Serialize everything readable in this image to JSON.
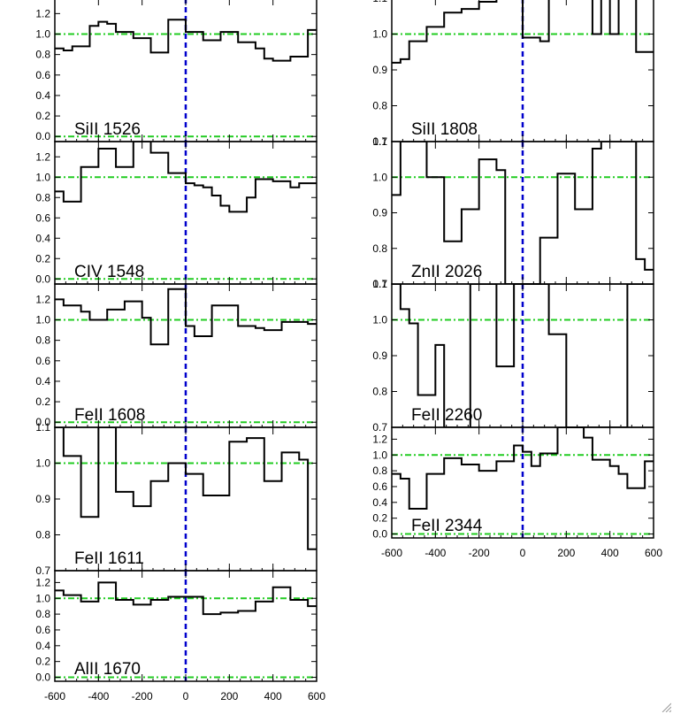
{
  "colors": {
    "spectrum": "#000000",
    "continuum": "#22cc22",
    "zero_velocity": "#0000cc",
    "background": "#ffffff"
  },
  "resize_grip_icon": "resize-grip-icon",
  "chart_data": [
    {
      "type": "line",
      "title": "",
      "xlabel": "",
      "ylabel": "",
      "xlim": [
        -600,
        600
      ],
      "ylim": [
        -0.05,
        1.35
      ],
      "yticks": [
        "0.0",
        "0.2",
        "0.4",
        "0.6",
        "0.8",
        "1.0",
        "1.2"
      ],
      "xticks": [],
      "annotation": "SiII 1526",
      "reference_lines": {
        "continuum": [
          0.0,
          1.0
        ],
        "velocity": 0
      },
      "series": [
        {
          "step_x": [
            -600,
            -560,
            -520,
            -480,
            -440,
            -400,
            -360,
            -320,
            -280,
            -240,
            -200,
            -160,
            -120,
            -80,
            -40,
            0,
            40,
            80,
            120,
            160,
            200,
            240,
            280,
            320,
            360,
            400,
            440,
            480,
            520,
            560,
            600
          ],
          "values": [
            0.86,
            0.84,
            0.88,
            0.88,
            1.08,
            1.12,
            1.1,
            1.02,
            1.02,
            0.96,
            0.96,
            0.82,
            0.82,
            1.14,
            1.14,
            1.02,
            1.02,
            0.94,
            0.94,
            1.02,
            1.02,
            0.92,
            0.92,
            0.86,
            0.76,
            0.74,
            0.74,
            0.78,
            0.78,
            1.04
          ]
        }
      ]
    },
    {
      "type": "line",
      "title": "",
      "xlabel": "",
      "ylabel": "",
      "xlim": [
        -600,
        600
      ],
      "ylim": [
        -0.05,
        1.35
      ],
      "yticks": [
        "0.0",
        "0.2",
        "0.4",
        "0.6",
        "0.8",
        "1.0",
        "1.2"
      ],
      "xticks": [],
      "annotation": "CIV 1548",
      "reference_lines": {
        "continuum": [
          0.0,
          1.0
        ],
        "velocity": 0
      },
      "series": [
        {
          "step_x": [
            -600,
            -560,
            -520,
            -480,
            -440,
            -400,
            -360,
            -320,
            -280,
            -240,
            -200,
            -160,
            -120,
            -80,
            -40,
            0,
            40,
            80,
            120,
            160,
            200,
            240,
            280,
            320,
            360,
            400,
            440,
            480,
            520,
            560,
            600
          ],
          "values": [
            0.86,
            0.76,
            0.76,
            1.1,
            1.1,
            1.28,
            1.28,
            1.1,
            1.1,
            1.36,
            1.36,
            1.24,
            1.24,
            1.04,
            1.04,
            0.94,
            0.92,
            0.9,
            0.82,
            0.72,
            0.66,
            0.66,
            0.8,
            0.98,
            0.98,
            0.96,
            0.96,
            0.9,
            0.94,
            0.94
          ]
        }
      ]
    },
    {
      "type": "line",
      "title": "",
      "xlabel": "",
      "ylabel": "",
      "xlim": [
        -600,
        600
      ],
      "ylim": [
        -0.05,
        1.35
      ],
      "yticks": [
        "0.0",
        "0.2",
        "0.4",
        "0.6",
        "0.8",
        "1.0",
        "1.2"
      ],
      "xticks": [],
      "annotation": "FeII 1608",
      "reference_lines": {
        "continuum": [
          0.0,
          1.0
        ],
        "velocity": 0
      },
      "series": [
        {
          "step_x": [
            -600,
            -560,
            -520,
            -480,
            -440,
            -400,
            -360,
            -320,
            -280,
            -240,
            -200,
            -160,
            -120,
            -80,
            -40,
            0,
            40,
            80,
            120,
            160,
            200,
            240,
            280,
            320,
            360,
            400,
            440,
            480,
            520,
            560,
            600
          ],
          "values": [
            1.2,
            1.14,
            1.14,
            1.08,
            1.0,
            1.0,
            1.1,
            1.1,
            1.18,
            1.18,
            1.02,
            0.76,
            0.76,
            1.3,
            1.3,
            0.94,
            0.84,
            0.84,
            1.14,
            1.14,
            1.14,
            0.94,
            0.94,
            0.92,
            0.9,
            0.9,
            0.98,
            0.98,
            0.98,
            0.96
          ]
        }
      ]
    },
    {
      "type": "line",
      "title": "",
      "xlabel": "",
      "ylabel": "",
      "xlim": [
        -600,
        600
      ],
      "ylim": [
        0.7,
        1.1
      ],
      "yticks": [
        "0.7",
        "0.8",
        "0.9",
        "1.0",
        "1.1"
      ],
      "xticks": [],
      "annotation": "FeII 1611",
      "reference_lines": {
        "continuum": [
          1.0
        ],
        "velocity": 0
      },
      "series": [
        {
          "step_x": [
            -600,
            -560,
            -520,
            -480,
            -440,
            -400,
            -360,
            -320,
            -280,
            -240,
            -200,
            -160,
            -120,
            -80,
            -40,
            0,
            40,
            80,
            120,
            160,
            200,
            240,
            280,
            320,
            360,
            400,
            440,
            480,
            520,
            560,
            600
          ],
          "values": [
            1.1,
            1.02,
            1.02,
            0.85,
            0.85,
            1.1,
            1.1,
            0.92,
            0.92,
            0.88,
            0.88,
            0.95,
            0.95,
            1.0,
            1.0,
            0.97,
            0.97,
            0.91,
            0.91,
            0.91,
            1.06,
            1.06,
            1.07,
            1.07,
            0.95,
            0.95,
            1.03,
            1.03,
            1.01,
            0.76
          ]
        }
      ]
    },
    {
      "type": "line",
      "title": "",
      "xlabel": "",
      "ylabel": "",
      "xlim": [
        -600,
        600
      ],
      "ylim": [
        -0.05,
        1.35
      ],
      "yticks": [
        "0.0",
        "0.2",
        "0.4",
        "0.6",
        "0.8",
        "1.0",
        "1.2"
      ],
      "xticks": [
        "-600",
        "-400",
        "-200",
        "0",
        "200",
        "400",
        "600"
      ],
      "annotation": "AlII 1670",
      "reference_lines": {
        "continuum": [
          0.0,
          1.0
        ],
        "velocity": 0
      },
      "series": [
        {
          "step_x": [
            -600,
            -560,
            -520,
            -480,
            -440,
            -400,
            -360,
            -320,
            -280,
            -240,
            -200,
            -160,
            -120,
            -80,
            -40,
            0,
            40,
            80,
            120,
            160,
            200,
            240,
            280,
            320,
            360,
            400,
            440,
            480,
            520,
            560,
            600
          ],
          "values": [
            1.1,
            1.04,
            1.04,
            0.96,
            0.96,
            1.2,
            1.2,
            0.98,
            0.98,
            0.92,
            0.92,
            0.98,
            0.98,
            1.02,
            1.02,
            1.02,
            1.02,
            0.8,
            0.8,
            0.82,
            0.82,
            0.84,
            0.84,
            0.96,
            0.96,
            1.14,
            1.14,
            0.98,
            0.98,
            0.9
          ]
        }
      ]
    },
    {
      "type": "line",
      "title": "",
      "xlabel": "",
      "ylabel": "",
      "xlim": [
        -600,
        600
      ],
      "ylim": [
        0.7,
        1.1
      ],
      "yticks": [
        "0.7",
        "0.8",
        "0.9",
        "1.0",
        "1.1"
      ],
      "xticks": [],
      "annotation": "SiII 1808",
      "reference_lines": {
        "continuum": [
          1.0
        ],
        "velocity": 0
      },
      "series": [
        {
          "step_x": [
            -600,
            -560,
            -520,
            -480,
            -440,
            -400,
            -360,
            -320,
            -280,
            -240,
            -200,
            -160,
            -120,
            -80,
            -40,
            0,
            40,
            80,
            120,
            160,
            200,
            240,
            280,
            320,
            360,
            400,
            440,
            480,
            520,
            560,
            600
          ],
          "values": [
            0.92,
            0.93,
            0.98,
            0.98,
            1.02,
            1.02,
            1.06,
            1.06,
            1.07,
            1.07,
            1.09,
            1.09,
            1.1,
            1.12,
            1.12,
            0.99,
            0.99,
            0.98,
            1.12,
            1.12,
            1.12,
            1.12,
            1.12,
            1.0,
            1.12,
            1.0,
            1.12,
            1.12,
            0.95,
            0.95
          ]
        }
      ]
    },
    {
      "type": "line",
      "title": "",
      "xlabel": "",
      "ylabel": "",
      "xlim": [
        -600,
        600
      ],
      "ylim": [
        0.7,
        1.1
      ],
      "yticks": [
        "0.7",
        "0.8",
        "0.9",
        "1.0",
        "1.1"
      ],
      "xticks": [],
      "annotation": "ZnII 2026",
      "reference_lines": {
        "continuum": [
          1.0
        ],
        "velocity": 0
      },
      "series": [
        {
          "step_x": [
            -600,
            -560,
            -520,
            -480,
            -440,
            -400,
            -360,
            -320,
            -280,
            -240,
            -200,
            -160,
            -120,
            -80,
            -40,
            0,
            40,
            80,
            120,
            160,
            200,
            240,
            280,
            320,
            360,
            400,
            440,
            480,
            520,
            560,
            600
          ],
          "values": [
            0.95,
            1.12,
            1.12,
            1.12,
            1.0,
            1.0,
            0.82,
            0.82,
            0.91,
            0.91,
            1.05,
            1.05,
            1.02,
            0.67,
            0.67,
            0.67,
            0.67,
            0.83,
            0.83,
            1.01,
            1.01,
            0.91,
            0.91,
            1.08,
            1.12,
            1.12,
            1.12,
            1.12,
            0.77,
            0.74
          ]
        }
      ]
    },
    {
      "type": "line",
      "title": "",
      "xlabel": "",
      "ylabel": "",
      "xlim": [
        -600,
        600
      ],
      "ylim": [
        0.7,
        1.1
      ],
      "yticks": [
        "0.7",
        "0.8",
        "0.9",
        "1.0",
        "1.1"
      ],
      "xticks": [],
      "annotation": "FeII 2260",
      "reference_lines": {
        "continuum": [
          1.0
        ],
        "velocity": 0
      },
      "series": [
        {
          "step_x": [
            -600,
            -560,
            -520,
            -480,
            -440,
            -400,
            -360,
            -320,
            -280,
            -240,
            -200,
            -160,
            -120,
            -80,
            -40,
            0,
            40,
            80,
            120,
            160,
            200,
            240,
            280,
            320,
            360,
            400,
            440,
            480,
            520,
            560,
            600
          ],
          "values": [
            1.12,
            1.03,
            0.99,
            0.79,
            0.79,
            0.93,
            0.68,
            0.68,
            0.68,
            1.12,
            1.12,
            1.12,
            0.87,
            0.87,
            1.12,
            1.12,
            1.12,
            1.12,
            0.96,
            0.96,
            0.68,
            0.68,
            0.68,
            0.68,
            0.68,
            0.68,
            0.68,
            1.12,
            1.12,
            1.12
          ]
        }
      ]
    },
    {
      "type": "line",
      "title": "",
      "xlabel": "",
      "ylabel": "",
      "xlim": [
        -600,
        600
      ],
      "ylim": [
        -0.05,
        1.35
      ],
      "yticks": [
        "0.0",
        "0.2",
        "0.4",
        "0.6",
        "0.8",
        "1.0",
        "1.2"
      ],
      "xticks": [
        "-600",
        "-400",
        "-200",
        "0",
        "200",
        "400",
        "600"
      ],
      "annotation": "FeII 2344",
      "reference_lines": {
        "continuum": [
          0.0,
          1.0
        ],
        "velocity": 0
      },
      "series": [
        {
          "step_x": [
            -600,
            -560,
            -520,
            -480,
            -440,
            -400,
            -360,
            -320,
            -280,
            -240,
            -200,
            -160,
            -120,
            -80,
            -40,
            0,
            40,
            80,
            120,
            160,
            200,
            240,
            280,
            320,
            360,
            400,
            440,
            480,
            520,
            560,
            600
          ],
          "values": [
            0.76,
            0.7,
            0.32,
            0.32,
            0.76,
            0.76,
            0.96,
            0.96,
            0.88,
            0.88,
            0.8,
            0.8,
            0.92,
            0.92,
            1.12,
            1.04,
            0.86,
            1.02,
            1.02,
            1.36,
            1.36,
            1.36,
            1.22,
            0.94,
            0.94,
            0.86,
            0.76,
            0.58,
            0.58,
            0.92
          ]
        }
      ]
    }
  ]
}
